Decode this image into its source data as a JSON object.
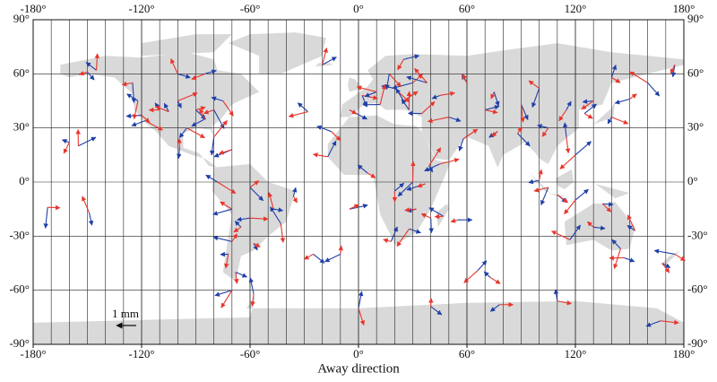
{
  "map": {
    "xlabel": "Away direction",
    "scale_label": "1 mm",
    "lon_range": [
      -180,
      180
    ],
    "lat_range": [
      -90,
      90
    ],
    "lon_ticks": [
      {
        "value": -180,
        "label": "-180°"
      },
      {
        "value": -120,
        "label": "-120°"
      },
      {
        "value": -60,
        "label": "-60°"
      },
      {
        "value": 0,
        "label": "0°"
      },
      {
        "value": 60,
        "label": "60°"
      },
      {
        "value": 120,
        "label": "120°"
      },
      {
        "value": 180,
        "label": "180°"
      }
    ],
    "lat_ticks": [
      {
        "value": 90,
        "label": "90°"
      },
      {
        "value": 60,
        "label": "60°"
      },
      {
        "value": 30,
        "label": "30°"
      },
      {
        "value": 0,
        "label": "0°"
      },
      {
        "value": -30,
        "label": "-30°"
      },
      {
        "value": -60,
        "label": "-60°"
      },
      {
        "value": -90,
        "label": "-90°"
      }
    ]
  }
}
